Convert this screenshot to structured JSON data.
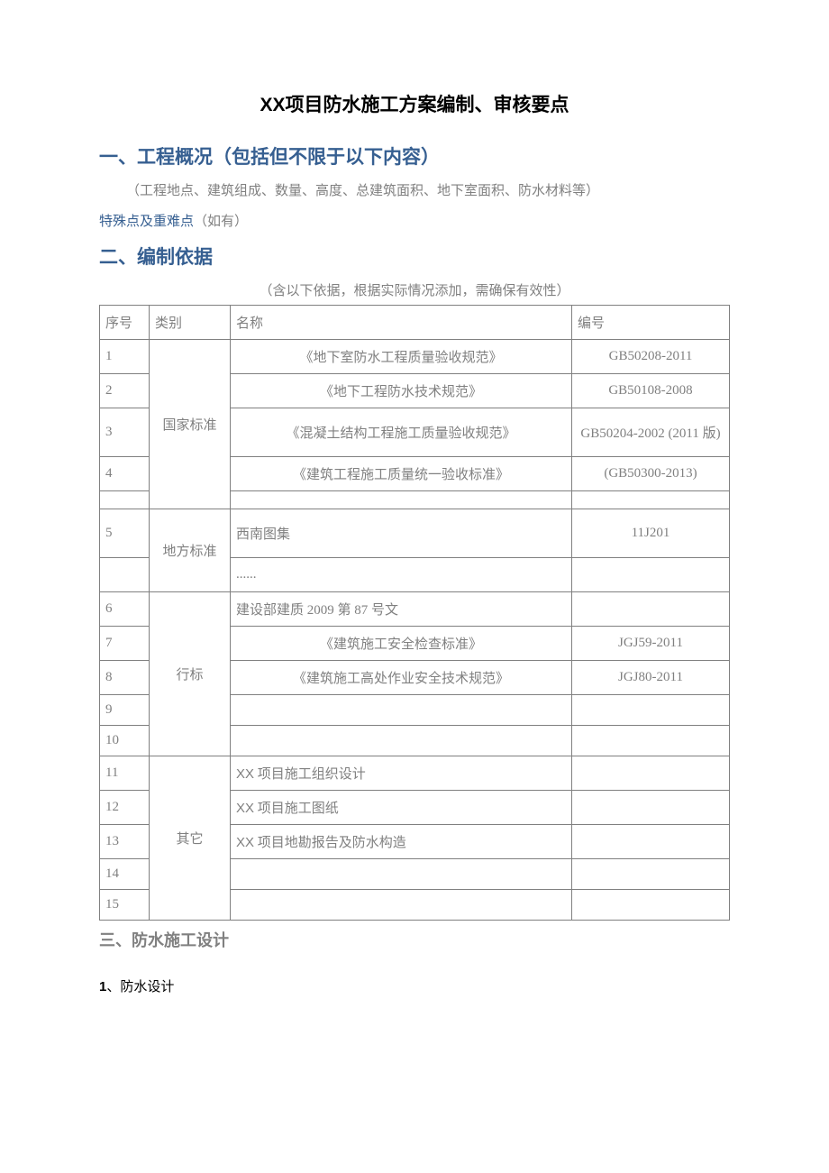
{
  "colors": {
    "heading_blue": "#365f91",
    "text_grey": "#808080",
    "text_black": "#000000",
    "border": "#808080",
    "background": "#ffffff"
  },
  "title": {
    "prefix": "XX",
    "rest": "项目防水施工方案编制、审核要点"
  },
  "section1": {
    "heading": "一、工程概况（包括但不限于以下内容）",
    "paragraph": "（工程地点、建筑组成、数量、高度、总建筑面积、地下室面积、防水材料等）",
    "subheading_colored": "特殊点及重难点",
    "subheading_grey": "（如有）"
  },
  "section2": {
    "heading": "二、编制依据",
    "caption": "（含以下依据，根据实际情况添加，需确保有效性）"
  },
  "table": {
    "headers": {
      "seq": "序号",
      "category": "类别",
      "name": "名称",
      "code": "编号"
    },
    "categories": {
      "national": "国家标准",
      "local": "地方标准",
      "industry": "行标",
      "other": "其它"
    },
    "rows": [
      {
        "seq": "1",
        "name": "《地下室防水工程质量验收规范》",
        "code": "GB50208-2011",
        "name_align": "center"
      },
      {
        "seq": "2",
        "name": "《地下工程防水技术规范》",
        "code": "GB50108-2008",
        "name_align": "center"
      },
      {
        "seq": "3",
        "name": "《混凝土结构工程施工质量验收规范》",
        "code": "GB50204-2002 (2011 版)",
        "name_align": "center",
        "tall": true
      },
      {
        "seq": "4",
        "name": "《建筑工程施工质量统一验收标准》",
        "code": "(GB50300-2013)",
        "name_align": "center"
      },
      {
        "seq": "5",
        "name": "西南图集",
        "code": "11J201",
        "name_align": "left"
      },
      {
        "seq": "",
        "name": "......",
        "code": "",
        "name_align": "left",
        "dots": true
      },
      {
        "seq": "6",
        "name": "建设部建质 2009 第 87 号文",
        "code": "",
        "name_align": "left"
      },
      {
        "seq": "7",
        "name": "《建筑施工安全检查标准》",
        "code": "JGJ59-2011",
        "name_align": "center"
      },
      {
        "seq": "8",
        "name": "《建筑施工高处作业安全技术规范》",
        "code": "JGJ80-2011",
        "name_align": "center"
      },
      {
        "seq": "9",
        "name": "",
        "code": "",
        "name_align": "left"
      },
      {
        "seq": "10",
        "name": "",
        "code": "",
        "name_align": "left"
      },
      {
        "seq": "11",
        "name_prefix": "XX",
        "name_rest": " 项目施工组织设计",
        "code": "",
        "name_align": "left"
      },
      {
        "seq": "12",
        "name_prefix": "XX",
        "name_rest": " 项目施工图纸",
        "code": "",
        "name_align": "left"
      },
      {
        "seq": "13",
        "name_prefix": "XX",
        "name_rest": " 项目地勘报告及防水构造",
        "code": "",
        "name_align": "left"
      },
      {
        "seq": "14",
        "name": "",
        "code": "",
        "name_align": "left"
      },
      {
        "seq": "15",
        "name": "",
        "code": "",
        "name_align": "left"
      }
    ]
  },
  "section3": {
    "heading": "三、防水施工设计",
    "sub_num": "1",
    "sub_text": "、防水设计"
  }
}
